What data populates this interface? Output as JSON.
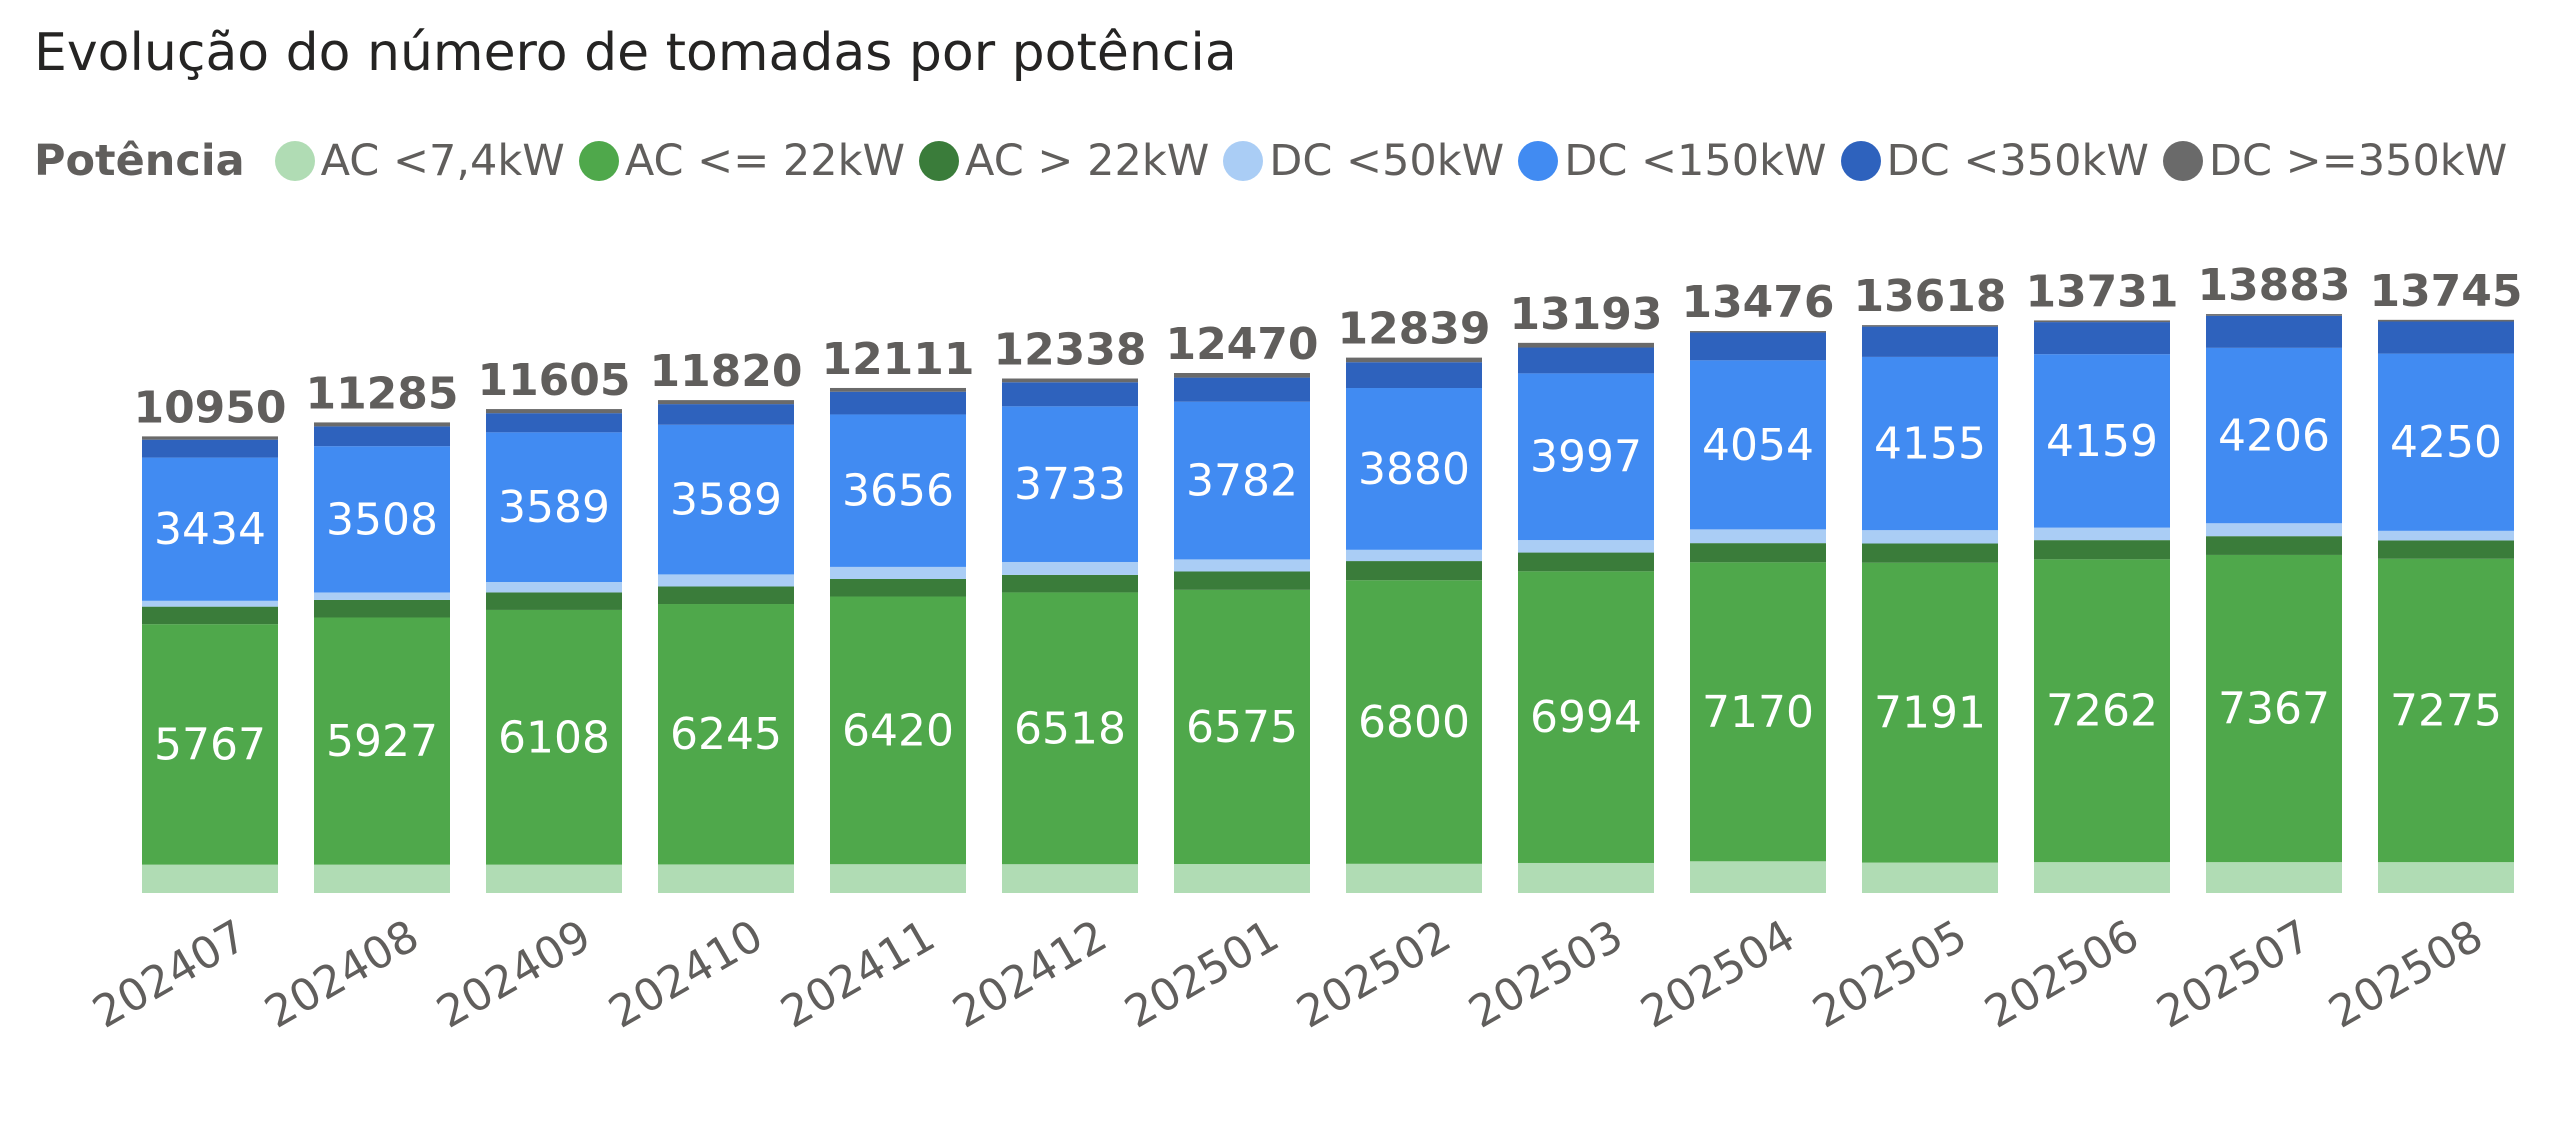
{
  "chart_data": {
    "type": "bar",
    "stacked": true,
    "title": "Evolução do número de tomadas por potência",
    "legend": {
      "title": "Potência",
      "placement": "top-left",
      "entries": [
        "AC <7,4kW",
        "AC <= 22kW",
        "AC > 22kW",
        "DC <50kW",
        "DC <150kW",
        "DC <350kW",
        "DC >=350kW"
      ]
    },
    "xlabel": "",
    "ylabel": "",
    "ylim": [
      0,
      14000
    ],
    "grid": false,
    "categories": [
      "202407",
      "202408",
      "202409",
      "202410",
      "202411",
      "202412",
      "202501",
      "202502",
      "202503",
      "202504",
      "202505",
      "202506",
      "202507",
      "202508"
    ],
    "totals": [
      10950,
      11285,
      11605,
      11820,
      12111,
      12338,
      12470,
      12839,
      13193,
      13476,
      13618,
      13731,
      13883,
      13745
    ],
    "series": [
      {
        "name": "AC <7,4kW",
        "color": "#b0dcb4",
        "show_labels": false,
        "values": [
          680,
          680,
          680,
          685,
          690,
          690,
          695,
          700,
          720,
          760,
          730,
          740,
          740,
          740
        ]
      },
      {
        "name": "AC <= 22kW",
        "color": "#4fa84b",
        "show_labels": true,
        "values": [
          5767,
          5927,
          6108,
          6245,
          6420,
          6518,
          6575,
          6800,
          6994,
          7170,
          7191,
          7262,
          7367,
          7275
        ]
      },
      {
        "name": "AC > 22kW",
        "color": "#3a7c3a",
        "show_labels": false,
        "values": [
          420,
          420,
          420,
          420,
          420,
          420,
          440,
          460,
          450,
          460,
          460,
          460,
          450,
          440
        ]
      },
      {
        "name": "DC <50kW",
        "color": "#aacdf5",
        "show_labels": false,
        "values": [
          140,
          180,
          250,
          290,
          290,
          310,
          290,
          270,
          300,
          330,
          320,
          300,
          310,
          230
        ]
      },
      {
        "name": "DC <150kW",
        "color": "#418bf2",
        "show_labels": true,
        "values": [
          3434,
          3508,
          3589,
          3589,
          3656,
          3733,
          3782,
          3880,
          3997,
          4054,
          4155,
          4159,
          4206,
          4250
        ]
      },
      {
        "name": "DC <350kW",
        "color": "#2e62bd",
        "show_labels": false,
        "values": [
          430,
          475,
          460,
          495,
          545,
          577,
          578,
          619,
          620,
          668,
          727,
          770,
          770,
          770
        ]
      },
      {
        "name": "DC >=350kW",
        "color": "#6a6a6a",
        "show_labels": false,
        "values": [
          79,
          95,
          98,
          96,
          90,
          90,
          110,
          110,
          112,
          34,
          35,
          40,
          40,
          40
        ]
      }
    ]
  }
}
